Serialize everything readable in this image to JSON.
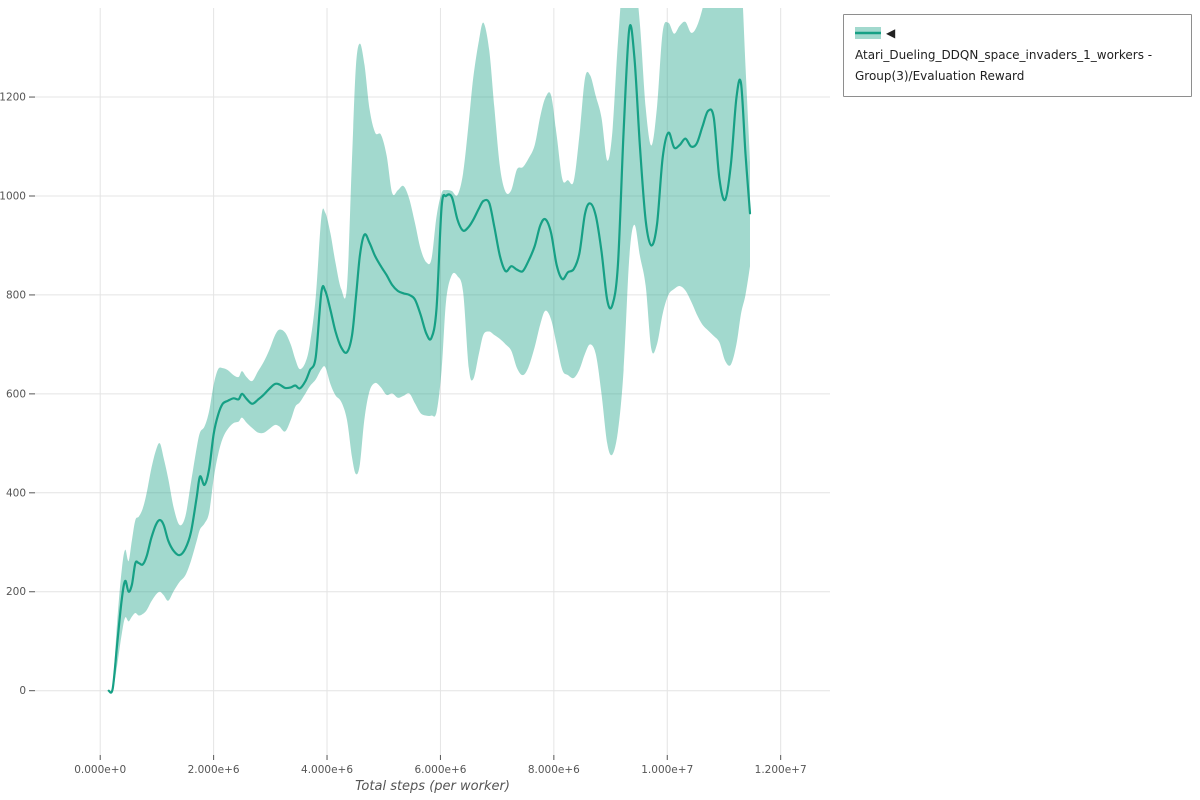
{
  "legend": {
    "collapse_icon": "◀"
  },
  "chart_data": {
    "type": "line",
    "title": "",
    "xlabel": "Total steps (per worker)",
    "ylabel": "",
    "grid": true,
    "grid_color": "#e4e4e4",
    "tick_color": "#555555",
    "label_color": "#555555",
    "legend_position": "top-right",
    "xlim": [
      -1150000,
      12870000
    ],
    "ylim": [
      -130,
      1380
    ],
    "x_ticks": {
      "values": [
        0,
        2000000,
        4000000,
        6000000,
        8000000,
        10000000,
        12000000
      ],
      "labels": [
        "0.000e+0",
        "2.000e+6",
        "4.000e+6",
        "6.000e+6",
        "8.000e+6",
        "1.000e+7",
        "1.200e+7"
      ]
    },
    "y_ticks": {
      "values": [
        0,
        200,
        400,
        600,
        800,
        1000,
        1200
      ],
      "labels": [
        "0",
        "200",
        "400",
        "600",
        "800",
        "1000",
        "1200"
      ]
    },
    "series": [
      {
        "name": "Atari_Dueling_DDQN_space_invaders_1_workers - Group(3)/Evaluation Reward",
        "color": "#16a085",
        "band_color": "rgba(22,160,133,0.40)",
        "x": [
          150000,
          220000,
          300000,
          380000,
          440000,
          500000,
          560000,
          620000,
          680000,
          750000,
          820000,
          900000,
          980000,
          1050000,
          1120000,
          1200000,
          1300000,
          1400000,
          1500000,
          1600000,
          1700000,
          1760000,
          1840000,
          1920000,
          2000000,
          2080000,
          2160000,
          2250000,
          2350000,
          2440000,
          2500000,
          2580000,
          2680000,
          2780000,
          2880000,
          2980000,
          3080000,
          3160000,
          3260000,
          3360000,
          3440000,
          3520000,
          3620000,
          3700000,
          3800000,
          3900000,
          3970000,
          4060000,
          4150000,
          4250000,
          4350000,
          4440000,
          4510000,
          4580000,
          4660000,
          4750000,
          4850000,
          4950000,
          5050000,
          5150000,
          5250000,
          5350000,
          5450000,
          5550000,
          5650000,
          5750000,
          5840000,
          5930000,
          6020000,
          6100000,
          6200000,
          6300000,
          6400000,
          6500000,
          6580000,
          6680000,
          6760000,
          6860000,
          6950000,
          7050000,
          7150000,
          7250000,
          7350000,
          7450000,
          7550000,
          7660000,
          7760000,
          7850000,
          7950000,
          8050000,
          8150000,
          8250000,
          8350000,
          8450000,
          8550000,
          8640000,
          8740000,
          8840000,
          8940000,
          9030000,
          9130000,
          9230000,
          9330000,
          9420000,
          9520000,
          9620000,
          9720000,
          9820000,
          9920000,
          10020000,
          10120000,
          10220000,
          10320000,
          10420000,
          10520000,
          10620000,
          10720000,
          10820000,
          10920000,
          11020000,
          11120000,
          11220000,
          11300000,
          11380000,
          11460000
        ],
        "mean": [
          0,
          4,
          95,
          185,
          222,
          200,
          215,
          258,
          258,
          255,
          272,
          308,
          335,
          345,
          335,
          303,
          282,
          274,
          287,
          320,
          390,
          433,
          416,
          448,
          518,
          558,
          580,
          586,
          591,
          589,
          600,
          590,
          580,
          588,
          598,
          610,
          620,
          619,
          612,
          613,
          617,
          611,
          626,
          648,
          674,
          806,
          808,
          770,
          726,
          694,
          684,
          718,
          795,
          880,
          922,
          905,
          878,
          858,
          840,
          820,
          808,
          803,
          800,
          791,
          760,
          722,
          713,
          772,
          978,
          1000,
          998,
          952,
          930,
          938,
          952,
          975,
          990,
          986,
          938,
          878,
          848,
          858,
          851,
          848,
          868,
          898,
          940,
          953,
          926,
          860,
          832,
          846,
          852,
          884,
          964,
          985,
          960,
          888,
          790,
          779,
          860,
          1130,
          1338,
          1280,
          1098,
          950,
          900,
          944,
          1078,
          1128,
          1098,
          1103,
          1116,
          1100,
          1106,
          1140,
          1172,
          1158,
          1035,
          992,
          1062,
          1198,
          1228,
          1085,
          965
        ],
        "lower": [
          0,
          0,
          52,
          115,
          148,
          140,
          150,
          157,
          152,
          155,
          163,
          180,
          194,
          200,
          193,
          182,
          202,
          220,
          233,
          262,
          302,
          326,
          338,
          360,
          428,
          478,
          510,
          529,
          541,
          544,
          552,
          542,
          531,
          522,
          521,
          529,
          537,
          534,
          524,
          547,
          574,
          583,
          601,
          616,
          629,
          650,
          654,
          620,
          597,
          584,
          548,
          472,
          438,
          458,
          550,
          606,
          622,
          613,
          598,
          601,
          592,
          596,
          601,
          581,
          561,
          556,
          556,
          563,
          648,
          788,
          840,
          838,
          806,
          652,
          630,
          682,
          720,
          726,
          719,
          711,
          700,
          687,
          652,
          638,
          653,
          694,
          740,
          768,
          751,
          699,
          648,
          638,
          632,
          649,
          681,
          700,
          680,
          600,
          500,
          477,
          524,
          648,
          875,
          942,
          878,
          818,
          690,
          701,
          762,
          800,
          812,
          818,
          809,
          787,
          761,
          740,
          728,
          717,
          704,
          667,
          659,
          700,
          762,
          800,
          858
        ],
        "upper": [
          2,
          10,
          140,
          245,
          285,
          262,
          305,
          345,
          352,
          368,
          400,
          448,
          485,
          500,
          470,
          428,
          368,
          335,
          352,
          420,
          490,
          522,
          534,
          565,
          618,
          650,
          652,
          648,
          638,
          634,
          646,
          634,
          626,
          645,
          664,
          688,
          718,
          730,
          724,
          700,
          670,
          650,
          664,
          702,
          795,
          958,
          966,
          925,
          865,
          812,
          815,
          1075,
          1262,
          1308,
          1265,
          1175,
          1128,
          1124,
          1082,
          1006,
          1012,
          1020,
          994,
          946,
          893,
          866,
          872,
          958,
          1006,
          1012,
          1010,
          1002,
          1046,
          1150,
          1240,
          1315,
          1350,
          1295,
          1180,
          1058,
          1008,
          1012,
          1054,
          1058,
          1075,
          1102,
          1160,
          1198,
          1204,
          1122,
          1034,
          1032,
          1030,
          1122,
          1238,
          1244,
          1202,
          1158,
          1072,
          1128,
          1310,
          1450,
          1450,
          1450,
          1345,
          1178,
          1102,
          1182,
          1332,
          1350,
          1328,
          1344,
          1352,
          1330,
          1342,
          1378,
          1430,
          1450,
          1440,
          1400,
          1430,
          1450,
          1450,
          1262,
          1068
        ]
      }
    ]
  }
}
